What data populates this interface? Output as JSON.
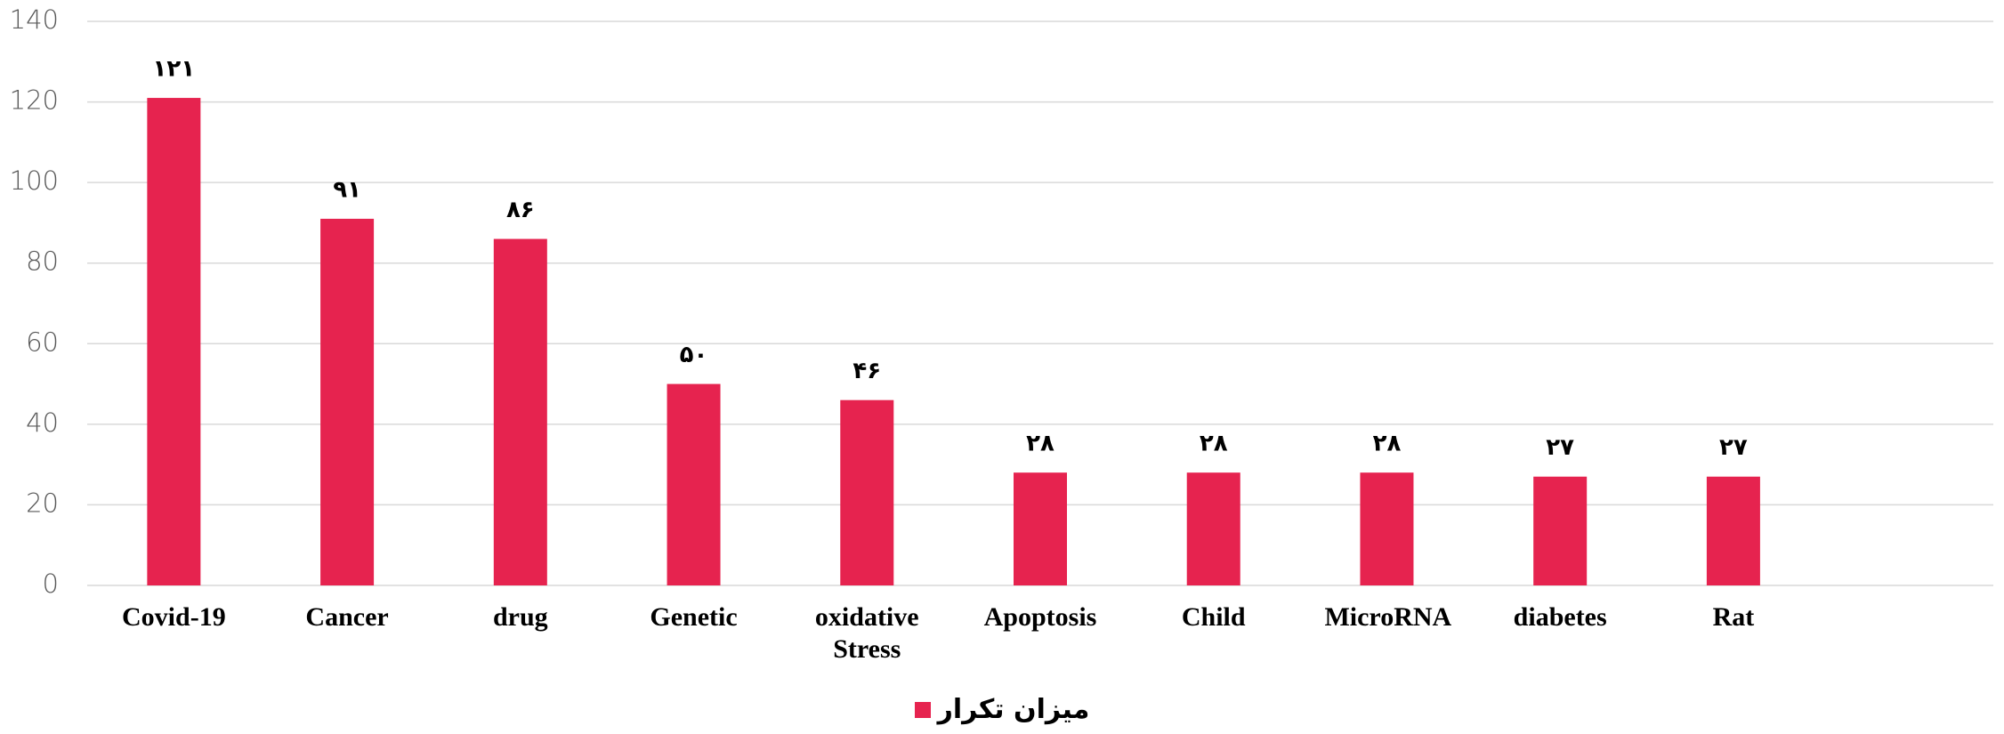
{
  "chart_data": {
    "type": "bar",
    "categories": [
      "Covid-19",
      "Cancer",
      "drug",
      "Genetic",
      "oxidative Stress",
      "Apoptosis",
      "Child",
      "MicroRNA",
      "diabetes",
      "Rat",
      null
    ],
    "series": [
      {
        "name": "میزان تکرار",
        "color": "#e6234f",
        "values": [
          121,
          91,
          86,
          50,
          46,
          28,
          28,
          28,
          27,
          27,
          null
        ],
        "value_labels": [
          "۱۲۱",
          "۹۱",
          "۸۶",
          "۵۰",
          "۴۶",
          "۲۸",
          "۲۸",
          "۲۸",
          "۲۷",
          "۲۷",
          null
        ]
      }
    ],
    "ylim": [
      0,
      140
    ],
    "yticks": [
      0,
      20,
      40,
      60,
      80,
      100,
      120,
      140
    ],
    "grid": true,
    "legend": "bottom"
  }
}
